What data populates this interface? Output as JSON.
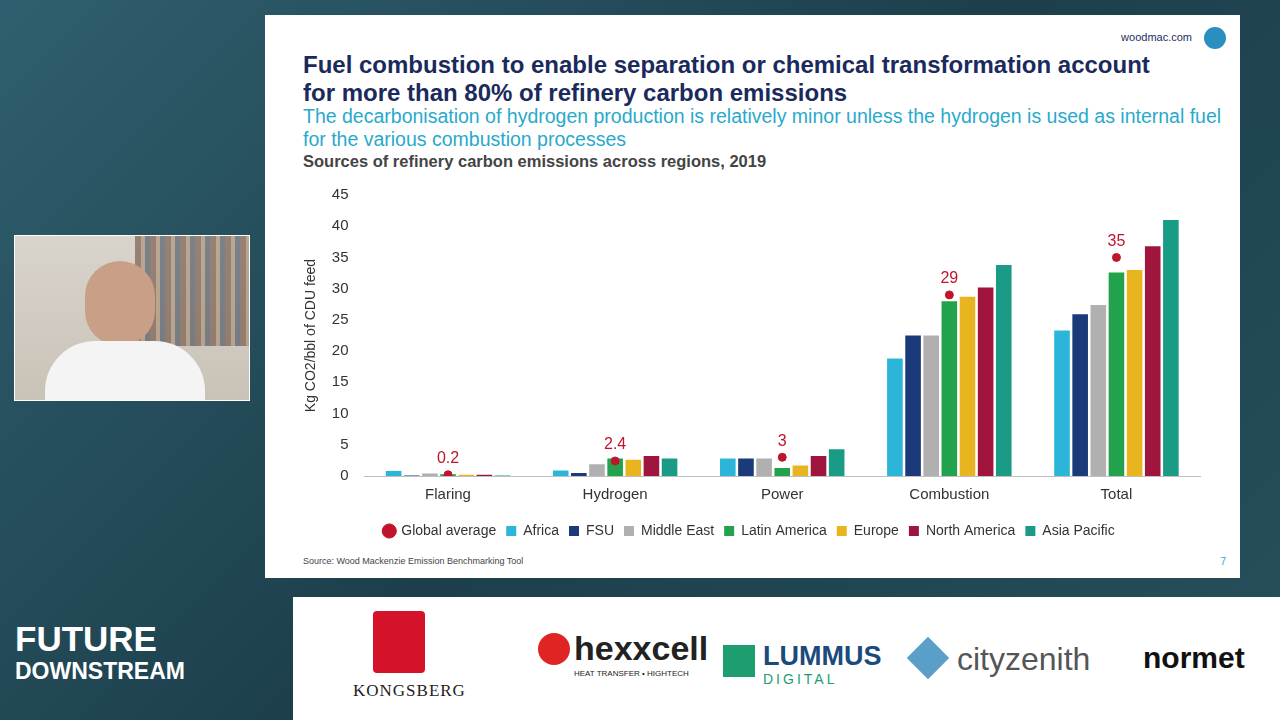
{
  "slide": {
    "site": "woodmac.com",
    "title": "Fuel combustion to enable separation or chemical transformation account for more than 80% of refinery carbon emissions",
    "subtitle": "The decarbonisation of hydrogen production is relatively minor unless the hydrogen is used as internal fuel for the various combustion processes",
    "source": "Source: Wood Mackenzie Emission Benchmarking Tool",
    "page": "7"
  },
  "footer": {
    "event": [
      "FUTURE",
      "DOWNSTREAM"
    ],
    "sponsors": [
      {
        "name": "KONGSBERG"
      },
      {
        "name": "hexxcell",
        "tagline": "HEAT TRANSFER • HIGHTECH"
      },
      {
        "name": "LUMMUS",
        "tagline": "DIGITAL"
      },
      {
        "name": "cityzenith"
      },
      {
        "name": "normet"
      }
    ]
  },
  "chart_data": {
    "type": "bar",
    "title": "Sources of refinery carbon emissions across regions, 2019",
    "y_label": "Kg CO2/bbl of CDU feed",
    "categories": [
      "Flaring",
      "Hydrogen",
      "Power",
      "Combustion",
      "Total"
    ],
    "series": [
      {
        "name": "Africa",
        "color": "#2bb5d8",
        "values": [
          0.8,
          0.9,
          2.8,
          18.8,
          23.3
        ]
      },
      {
        "name": "FSU",
        "color": "#1a3a7a",
        "values": [
          0.1,
          0.5,
          2.8,
          22.5,
          25.9
        ]
      },
      {
        "name": "Middle East",
        "color": "#b0b0b0",
        "values": [
          0.4,
          1.9,
          2.8,
          22.5,
          27.4
        ]
      },
      {
        "name": "Latin America",
        "color": "#22a24c",
        "values": [
          0.3,
          2.8,
          1.3,
          28,
          32.6
        ]
      },
      {
        "name": "Europe",
        "color": "#e8b520",
        "values": [
          0.2,
          2.6,
          1.7,
          28.7,
          33
        ]
      },
      {
        "name": "North America",
        "color": "#a0153e",
        "values": [
          0.2,
          3.2,
          3.2,
          30.2,
          36.8
        ]
      },
      {
        "name": "Asia Pacific",
        "color": "#1a9b86",
        "values": [
          0.1,
          2.8,
          4.3,
          33.8,
          41
        ]
      },
      {
        "name": "Global average",
        "color": "#c0142c",
        "type": "scatter",
        "marker": "circle",
        "data_labels": true,
        "values": [
          0.2,
          2.4,
          3,
          29,
          35
        ]
      }
    ],
    "ylim": [
      0,
      45
    ],
    "yticks": [
      0,
      5,
      10,
      15,
      20,
      25,
      30,
      35,
      40,
      45
    ],
    "grid": false,
    "legend": "bottom"
  }
}
